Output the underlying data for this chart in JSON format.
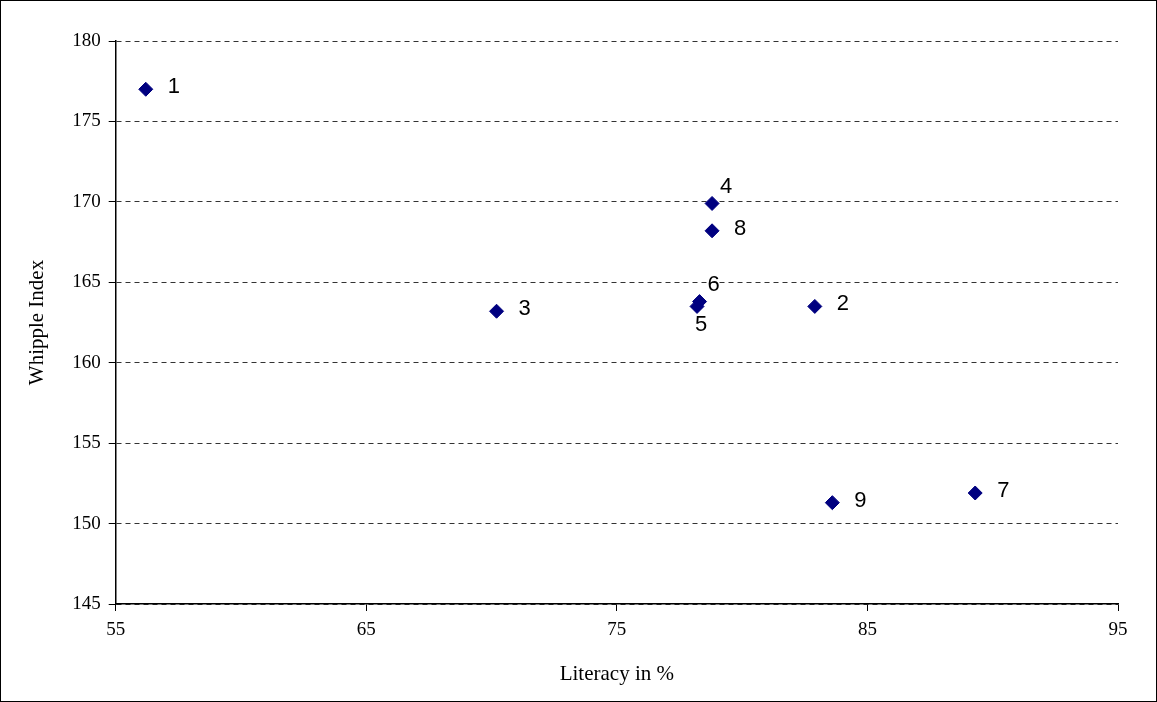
{
  "chart_data": {
    "type": "scatter",
    "xlabel": "Literacy in %",
    "ylabel": "Whipple Index",
    "x": [
      56.2,
      82.9,
      70.2,
      78.8,
      78.2,
      78.3,
      89.3,
      78.8,
      83.6
    ],
    "values": [
      177,
      163.5,
      163.2,
      169.9,
      163.5,
      163.8,
      151.9,
      168.2,
      151.3
    ],
    "color": "#000080",
    "marker": "diamond",
    "xlim": [
      55,
      95
    ],
    "xticks": [
      55,
      65,
      75,
      85,
      95
    ],
    "ylim": [
      145,
      180
    ],
    "yticks": [
      145,
      150,
      155,
      160,
      165,
      170,
      175,
      180
    ],
    "grid": "y",
    "legend": false,
    "annotations": [
      {
        "text": "1",
        "x": 56.2,
        "y": 177
      },
      {
        "text": "2",
        "x": 82.9,
        "y": 163.5
      },
      {
        "text": "3",
        "x": 70.2,
        "y": 163.2
      },
      {
        "text": "4",
        "x": 78.8,
        "y": 169.9
      },
      {
        "text": "5",
        "x": 78.2,
        "y": 163.5
      },
      {
        "text": "6",
        "x": 78.3,
        "y": 163.8
      },
      {
        "text": "7",
        "x": 89.3,
        "y": 151.9
      },
      {
        "text": "8",
        "x": 78.8,
        "y": 168.2
      },
      {
        "text": "9",
        "x": 83.6,
        "y": 151.3
      }
    ]
  }
}
